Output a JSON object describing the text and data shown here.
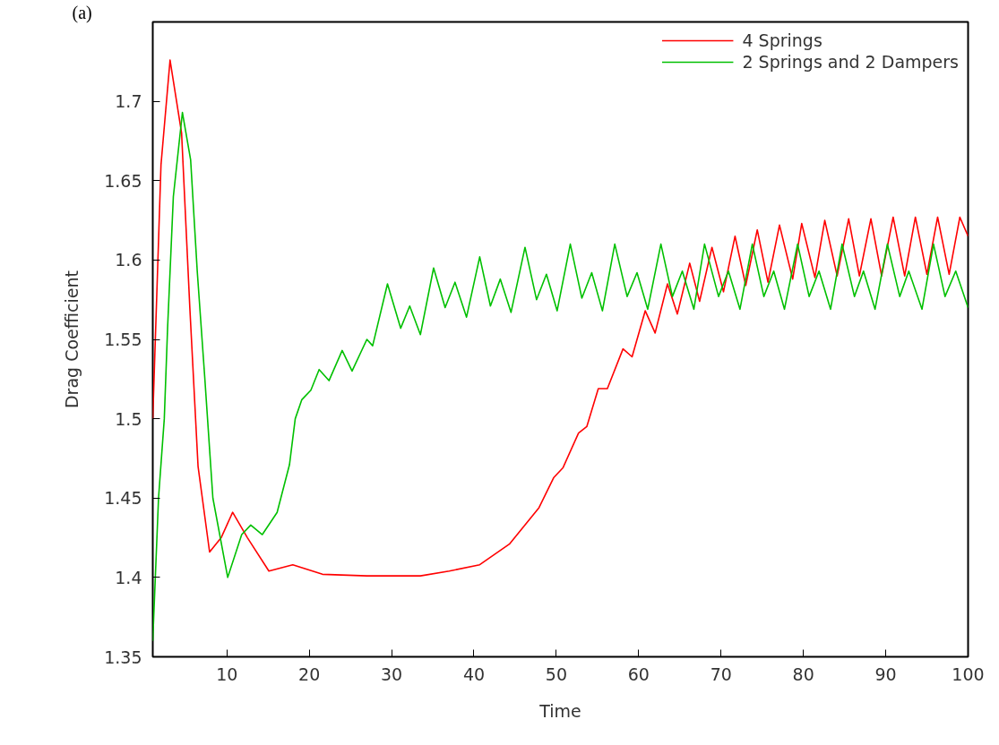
{
  "chart_data": {
    "type": "line",
    "xlabel": "Time",
    "ylabel": "Drag Coefficient",
    "annotations": [
      "(a)"
    ],
    "xlim": [
      1,
      100
    ],
    "ylim": [
      1.35,
      1.75
    ],
    "xticks": [
      10,
      20,
      30,
      40,
      50,
      60,
      70,
      80,
      90,
      100
    ],
    "yticks": [
      1.35,
      1.4,
      1.45,
      1.5,
      1.55,
      1.6,
      1.65,
      1.7
    ],
    "grid": false,
    "legend": "top right",
    "marker": "none",
    "line_style": "solid",
    "series": [
      {
        "name": "4 Springs",
        "color": "#ff0000",
        "x": [
          1,
          2,
          3.1,
          4.5,
          5.5,
          6.5,
          7.9,
          9.3,
          10.7,
          12.5,
          15.1,
          18,
          21.6,
          27,
          33.5,
          37,
          40.7,
          44.3,
          47.9,
          49.7,
          50.8,
          52.7,
          53.7,
          55.1,
          56.2,
          58.1,
          59.2,
          60.8,
          62,
          63.5,
          64.7,
          66.2,
          67.4,
          68.9,
          70.3,
          71.7,
          73,
          74.4,
          75.7,
          77.1,
          78.7,
          79.8,
          81.4,
          82.6,
          84.1,
          85.5,
          86.8,
          88.2,
          89.5,
          90.9,
          92.3,
          93.6,
          95,
          96.3,
          97.7,
          99,
          100
        ],
        "values": [
          1.5,
          1.66,
          1.726,
          1.68,
          1.57,
          1.47,
          1.416,
          1.425,
          1.441,
          1.425,
          1.404,
          1.408,
          1.402,
          1.401,
          1.401,
          1.404,
          1.408,
          1.421,
          1.444,
          1.463,
          1.469,
          1.491,
          1.495,
          1.519,
          1.519,
          1.544,
          1.539,
          1.568,
          1.554,
          1.585,
          1.566,
          1.598,
          1.574,
          1.608,
          1.58,
          1.615,
          1.584,
          1.619,
          1.586,
          1.622,
          1.588,
          1.623,
          1.589,
          1.625,
          1.59,
          1.626,
          1.59,
          1.626,
          1.59,
          1.627,
          1.59,
          1.627,
          1.591,
          1.627,
          1.591,
          1.627,
          1.615
        ]
      },
      {
        "name": "2 Springs and 2 Dampers",
        "color": "#00c000",
        "x": [
          1,
          1.7,
          2.4,
          2.8,
          3.5,
          4.6,
          5.6,
          6.4,
          7.3,
          8.3,
          10.1,
          11.8,
          12.9,
          14.3,
          16.1,
          17.6,
          18.3,
          19.1,
          20.2,
          21.2,
          22.4,
          24,
          25.2,
          27,
          27.7,
          29.5,
          31.1,
          32.2,
          33.5,
          35.1,
          36.5,
          37.7,
          39.1,
          40.7,
          42,
          43.2,
          44.5,
          46.2,
          47.6,
          48.8,
          50.1,
          51.7,
          53.1,
          54.3,
          55.6,
          57.1,
          58.6,
          59.8,
          61.1,
          62.7,
          64.1,
          65.3,
          66.7,
          68,
          69.7,
          70.9,
          72.3,
          73.8,
          75.2,
          76.4,
          77.7,
          79.3,
          80.7,
          81.9,
          83.3,
          84.7,
          86.2,
          87.3,
          88.7,
          90.2,
          91.7,
          92.8,
          94.4,
          95.8,
          97.2,
          98.5,
          100
        ],
        "values": [
          1.36,
          1.45,
          1.5,
          1.557,
          1.64,
          1.693,
          1.663,
          1.593,
          1.527,
          1.45,
          1.4,
          1.427,
          1.433,
          1.427,
          1.441,
          1.471,
          1.5,
          1.512,
          1.518,
          1.531,
          1.524,
          1.543,
          1.53,
          1.55,
          1.546,
          1.585,
          1.557,
          1.571,
          1.553,
          1.595,
          1.57,
          1.586,
          1.564,
          1.602,
          1.571,
          1.588,
          1.567,
          1.608,
          1.575,
          1.591,
          1.568,
          1.61,
          1.576,
          1.592,
          1.568,
          1.61,
          1.577,
          1.592,
          1.569,
          1.61,
          1.577,
          1.593,
          1.569,
          1.61,
          1.577,
          1.593,
          1.569,
          1.61,
          1.577,
          1.593,
          1.569,
          1.61,
          1.577,
          1.593,
          1.569,
          1.61,
          1.577,
          1.593,
          1.569,
          1.61,
          1.577,
          1.593,
          1.569,
          1.61,
          1.577,
          1.593,
          1.57
        ]
      }
    ]
  }
}
